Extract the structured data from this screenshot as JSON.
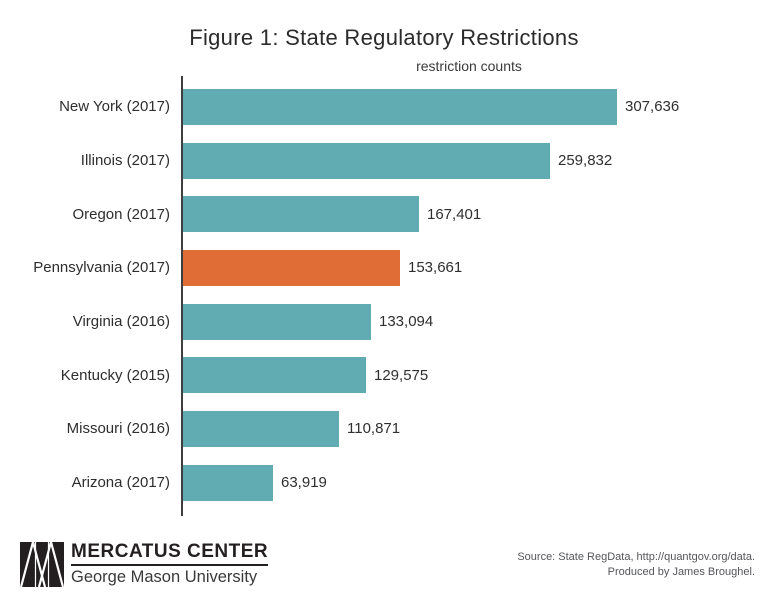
{
  "header": {
    "title": "Figure 1: State Regulatory Restrictions",
    "subtitle": "restriction counts"
  },
  "chart_data": {
    "type": "bar",
    "orientation": "horizontal",
    "title": "Figure 1: State Regulatory Restrictions",
    "xlabel": "restriction counts",
    "ylabel": "",
    "xlim": [
      0,
      330000
    ],
    "grid": false,
    "legend": false,
    "bar_color": "#61acb2",
    "highlight_color": "#e06d35",
    "axis_color": "#3f3f3f",
    "bars": [
      {
        "label": "New York (2017)",
        "value": 307636,
        "value_label": "307,636",
        "highlight": false
      },
      {
        "label": "Illinois (2017)",
        "value": 259832,
        "value_label": "259,832",
        "highlight": false
      },
      {
        "label": "Oregon (2017)",
        "value": 167401,
        "value_label": "167,401",
        "highlight": false
      },
      {
        "label": "Pennsylvania (2017)",
        "value": 153661,
        "value_label": "153,661",
        "highlight": true
      },
      {
        "label": "Virginia (2016)",
        "value": 133094,
        "value_label": "133,094",
        "highlight": false
      },
      {
        "label": "Kentucky (2015)",
        "value": 129575,
        "value_label": "129,575",
        "highlight": false
      },
      {
        "label": "Missouri (2016)",
        "value": 110871,
        "value_label": "110,871",
        "highlight": false
      },
      {
        "label": "Arizona (2017)",
        "value": 63919,
        "value_label": "63,919",
        "highlight": false
      }
    ]
  },
  "footer": {
    "logo": {
      "icon": "mercatus-triangles-logo",
      "title": "MERCATUS CENTER",
      "subtitle": "George Mason University"
    },
    "source": {
      "line1": "Source: State RegData, http://quantgov.org/data.",
      "line2": "Produced by James Broughel."
    }
  }
}
